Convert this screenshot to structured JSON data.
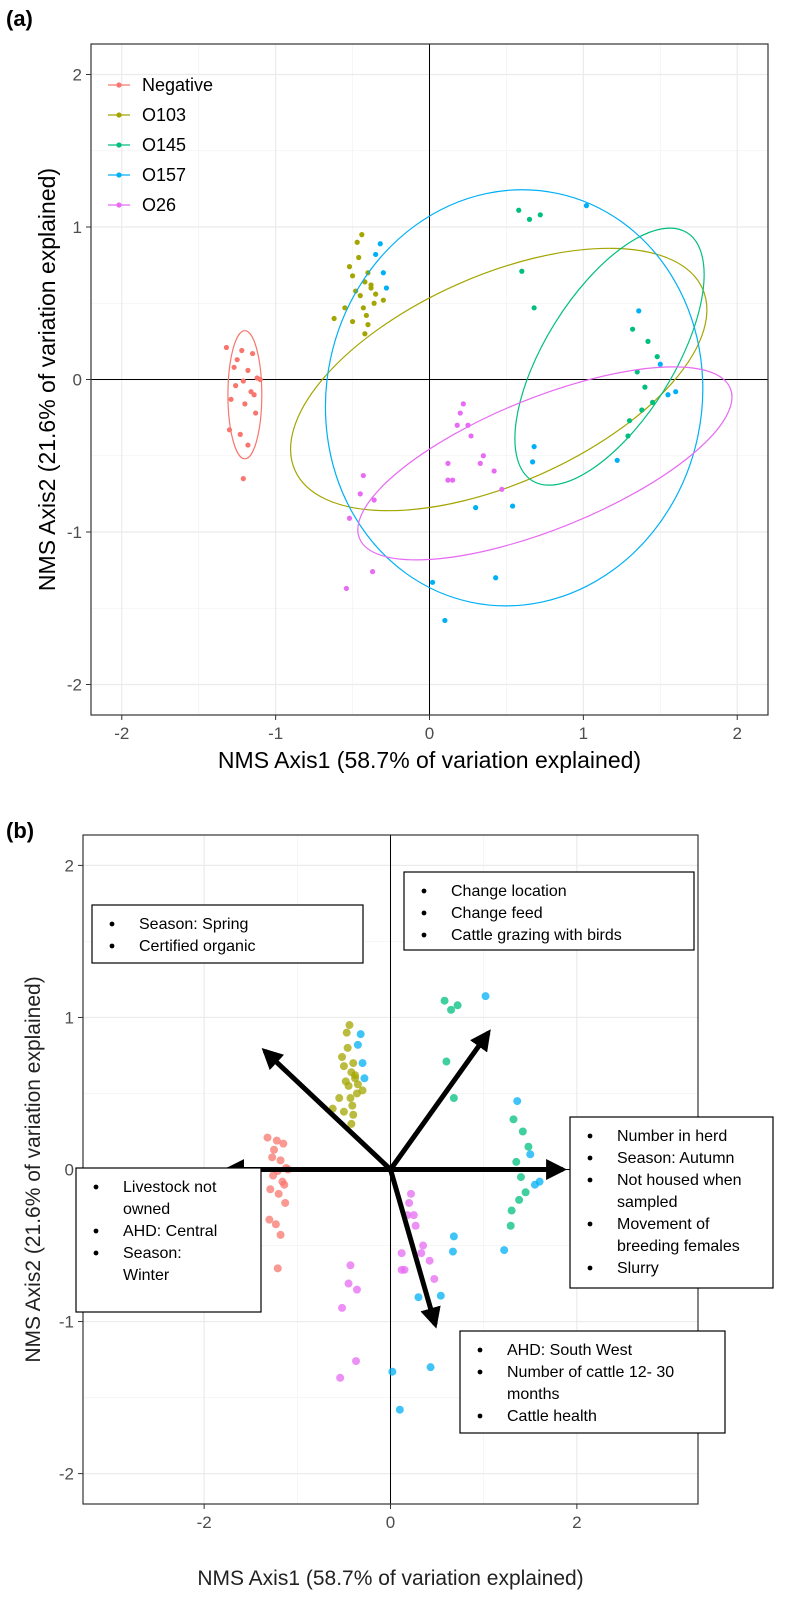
{
  "panels": {
    "a_label": "(a)",
    "b_label": "(b)"
  },
  "chart_data": [
    {
      "type": "scatter",
      "panel": "(a)",
      "title": "",
      "xlabel": "NMS Axis1 (58.7% of variation explained)",
      "ylabel": "NMS Axis2 (21.6% of variation explained)",
      "xlim": [
        -2.2,
        2.2
      ],
      "ylim": [
        -2.2,
        2.2
      ],
      "xticks": [
        -2,
        -1,
        0,
        1,
        2
      ],
      "yticks": [
        -2,
        -1,
        0,
        1,
        2
      ],
      "grid": true,
      "legend_position": "top-left",
      "reference_lines": {
        "x": 0,
        "y": 0
      },
      "series": [
        {
          "name": "Negative",
          "color": "#F8766D",
          "points": [
            [
              -1.32,
              0.21
            ],
            [
              -1.22,
              0.19
            ],
            [
              -1.15,
              0.17
            ],
            [
              -1.27,
              0.08
            ],
            [
              -1.18,
              0.06
            ],
            [
              -1.12,
              0.01
            ],
            [
              -1.21,
              -0.01
            ],
            [
              -1.26,
              -0.04
            ],
            [
              -1.16,
              -0.08
            ],
            [
              -1.29,
              -0.13
            ],
            [
              -1.2,
              -0.16
            ],
            [
              -1.13,
              -0.22
            ],
            [
              -1.3,
              -0.33
            ],
            [
              -1.23,
              -0.36
            ],
            [
              -1.18,
              -0.43
            ],
            [
              -1.21,
              -0.65
            ],
            [
              -1.1,
              0.0
            ],
            [
              -1.25,
              0.13
            ],
            [
              -1.14,
              -0.1
            ]
          ],
          "ellipse": {
            "cx": -1.2,
            "cy": -0.1,
            "rx": 0.11,
            "ry": 0.42,
            "angle": 0
          }
        },
        {
          "name": "O103",
          "color": "#A3A500",
          "points": [
            [
              -0.52,
              0.74
            ],
            [
              -0.5,
              0.68
            ],
            [
              -0.46,
              0.8
            ],
            [
              -0.45,
              0.55
            ],
            [
              -0.42,
              0.64
            ],
            [
              -0.48,
              0.58
            ],
            [
              -0.4,
              0.7
            ],
            [
              -0.38,
              0.6
            ],
            [
              -0.36,
              0.5
            ],
            [
              -0.43,
              0.47
            ],
            [
              -0.55,
              0.47
            ],
            [
              -0.62,
              0.4
            ],
            [
              -0.5,
              0.38
            ],
            [
              -0.4,
              0.36
            ],
            [
              -0.42,
              0.3
            ],
            [
              -0.35,
              0.56
            ],
            [
              -0.47,
              0.9
            ],
            [
              -0.44,
              0.95
            ],
            [
              -0.38,
              0.62
            ],
            [
              -0.41,
              0.42
            ],
            [
              -0.3,
              0.52
            ]
          ],
          "ellipse": {
            "cx": 0.45,
            "cy": 0.0,
            "rx": 1.45,
            "ry": 0.68,
            "angle": -24
          }
        },
        {
          "name": "O145",
          "color": "#00BF7D",
          "points": [
            [
              0.58,
              1.11
            ],
            [
              0.65,
              1.05
            ],
            [
              0.72,
              1.08
            ],
            [
              0.6,
              0.71
            ],
            [
              0.68,
              0.47
            ],
            [
              1.32,
              0.33
            ],
            [
              1.35,
              0.05
            ],
            [
              1.4,
              -0.05
            ],
            [
              1.45,
              -0.15
            ],
            [
              1.38,
              -0.2
            ],
            [
              1.3,
              -0.27
            ],
            [
              1.29,
              -0.37
            ],
            [
              1.48,
              0.15
            ],
            [
              1.42,
              0.25
            ]
          ],
          "ellipse": {
            "cx": 1.17,
            "cy": 0.15,
            "rx": 0.95,
            "ry": 0.42,
            "angle": -58
          }
        },
        {
          "name": "O157",
          "color": "#00B0F6",
          "points": [
            [
              1.02,
              1.14
            ],
            [
              -0.32,
              0.89
            ],
            [
              -0.3,
              0.7
            ],
            [
              -0.28,
              0.6
            ],
            [
              -0.35,
              0.82
            ],
            [
              1.36,
              0.45
            ],
            [
              1.5,
              0.1
            ],
            [
              1.6,
              -0.08
            ],
            [
              1.55,
              -0.1
            ],
            [
              1.22,
              -0.53
            ],
            [
              0.68,
              -0.44
            ],
            [
              0.67,
              -0.54
            ],
            [
              0.54,
              -0.83
            ],
            [
              0.43,
              -1.3
            ],
            [
              0.1,
              -1.58
            ],
            [
              0.02,
              -1.33
            ],
            [
              0.3,
              -0.84
            ]
          ],
          "ellipse": {
            "cx": 0.55,
            "cy": -0.12,
            "rx": 1.22,
            "ry": 1.37,
            "angle": 12
          }
        },
        {
          "name": "O26",
          "color": "#E76BF3",
          "points": [
            [
              0.2,
              -0.22
            ],
            [
              0.25,
              -0.3
            ],
            [
              0.18,
              -0.3
            ],
            [
              0.27,
              -0.37
            ],
            [
              0.22,
              -0.16
            ],
            [
              0.35,
              -0.5
            ],
            [
              0.33,
              -0.55
            ],
            [
              0.12,
              -0.55
            ],
            [
              0.15,
              -0.66
            ],
            [
              0.12,
              -0.66
            ],
            [
              0.47,
              -0.72
            ],
            [
              -0.45,
              -0.75
            ],
            [
              -0.43,
              -0.63
            ],
            [
              -0.36,
              -0.79
            ],
            [
              -0.52,
              -0.91
            ],
            [
              -0.37,
              -1.26
            ],
            [
              -0.54,
              -1.37
            ],
            [
              0.42,
              -0.6
            ]
          ],
          "ellipse": {
            "cx": 0.75,
            "cy": -0.55,
            "rx": 1.3,
            "ry": 0.43,
            "angle": -22
          }
        }
      ]
    },
    {
      "type": "scatter",
      "panel": "(b)",
      "title": "",
      "xlabel": "NMS Axis1 (58.7% of variation explained)",
      "ylabel": "NMS Axis2 (21.6% of variation explained)",
      "xlim": [
        -3.3,
        3.3
      ],
      "ylim": [
        -2.2,
        2.2
      ],
      "xticks": [
        -2,
        0,
        2
      ],
      "yticks": [
        -2,
        -1,
        0,
        1,
        2
      ],
      "grid": true,
      "reference_lines": {
        "x": 0,
        "y": 0
      },
      "series_colors": {
        "Negative": "#F8766D",
        "O103": "#A3A500",
        "O145": "#00BF7D",
        "O157": "#00B0F6",
        "O26": "#E76BF3"
      },
      "vectors": [
        {
          "x": -1.35,
          "y": 0.78
        },
        {
          "x": 1.05,
          "y": 0.9
        },
        {
          "x": -1.75,
          "y": 0.0
        },
        {
          "x": 1.85,
          "y": 0.0
        },
        {
          "x": 0.48,
          "y": -1.02
        }
      ],
      "annotation_boxes": [
        {
          "lines": [
            "Season: Spring",
            "Certified organic"
          ]
        },
        {
          "lines": [
            "Change location",
            "Change feed",
            "Cattle grazing with birds"
          ]
        },
        {
          "lines": [
            "Livestock not",
            "owned",
            "AHD: Central",
            "Season:",
            "Winter"
          ],
          "bullets_at": [
            0,
            2,
            3
          ]
        },
        {
          "lines": [
            "Number in herd",
            "Season: Autumn",
            "Not housed when",
            "sampled",
            "Movement of",
            "breeding females",
            "Slurry"
          ],
          "bullets_at": [
            0,
            1,
            2,
            4,
            6
          ]
        },
        {
          "lines": [
            "AHD: South West",
            "Number of cattle 12- 30",
            "months",
            "Cattle health"
          ],
          "bullets_at": [
            0,
            1,
            3
          ]
        }
      ]
    }
  ]
}
